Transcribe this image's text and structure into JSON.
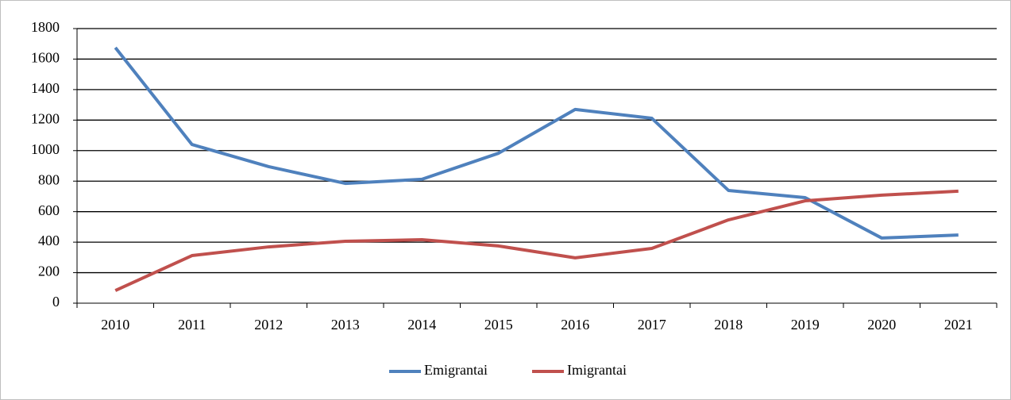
{
  "chart_data": {
    "type": "line",
    "categories": [
      "2010",
      "2011",
      "2012",
      "2013",
      "2014",
      "2015",
      "2016",
      "2017",
      "2018",
      "2019",
      "2020",
      "2021"
    ],
    "series": [
      {
        "name": "Emigrantai",
        "color": "#4f81bd",
        "values": [
          1675,
          1040,
          895,
          785,
          812,
          983,
          1270,
          1212,
          739,
          692,
          427,
          447
        ]
      },
      {
        "name": "Imigrantai",
        "color": "#c0504d",
        "values": [
          83,
          312,
          369,
          406,
          416,
          375,
          297,
          359,
          546,
          671,
          708,
          734
        ]
      }
    ],
    "ylim": [
      0,
      1800
    ],
    "yticks": [
      0,
      200,
      400,
      600,
      800,
      1000,
      1200,
      1400,
      1600,
      1800
    ],
    "grid": true,
    "legend": "bottom"
  }
}
